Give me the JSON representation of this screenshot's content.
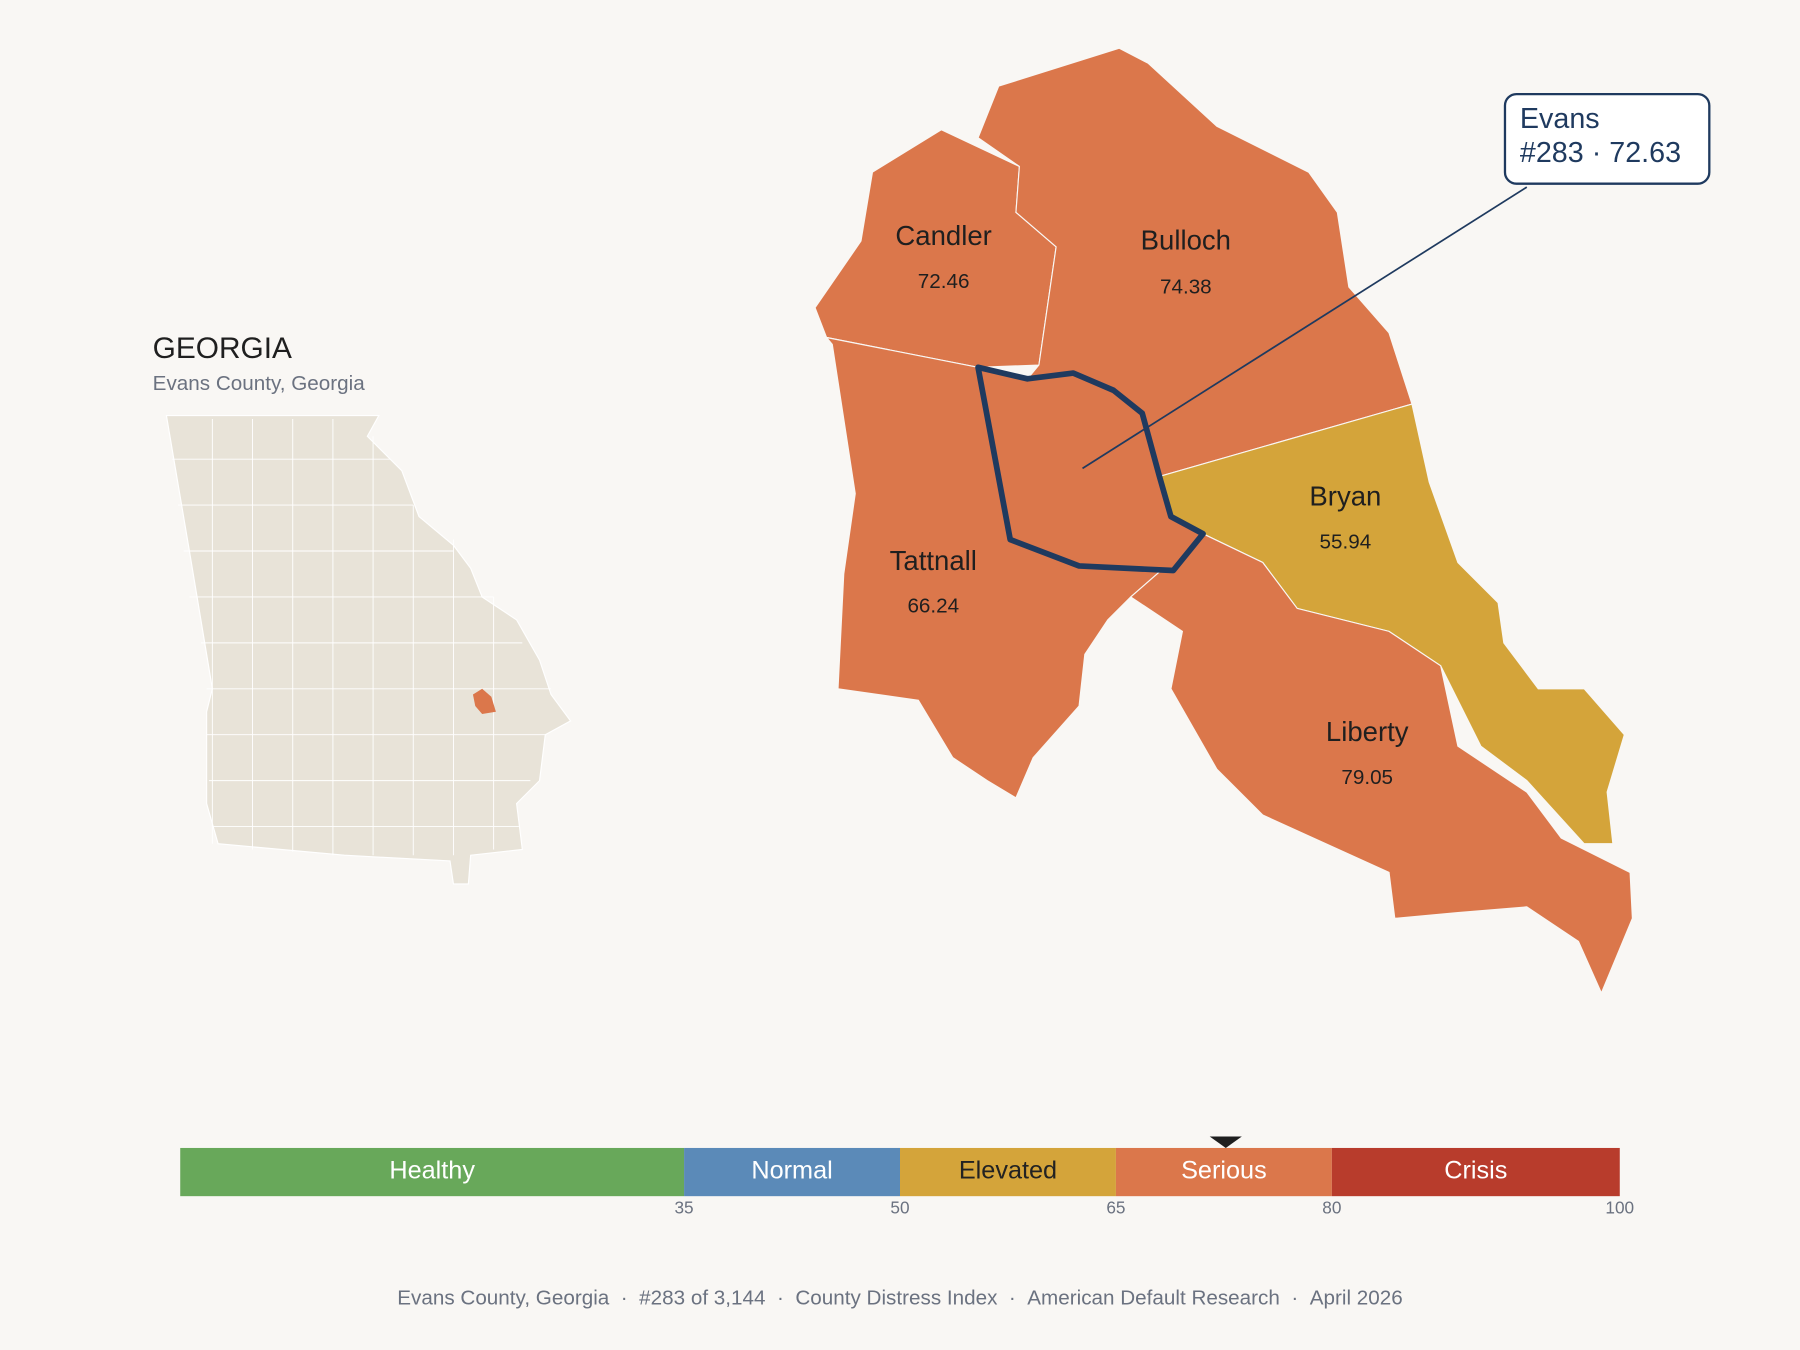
{
  "header": {
    "title": "GEORGIA",
    "subtitle": "Evans County, Georgia"
  },
  "map": {
    "counties": [
      {
        "name": "Candler",
        "value": 72.46
      },
      {
        "name": "Bulloch",
        "value": 74.38
      },
      {
        "name": "Tattnall",
        "value": 66.24
      },
      {
        "name": "Bryan",
        "value": 55.94
      },
      {
        "name": "Liberty",
        "value": 79.05
      }
    ],
    "highlight": {
      "name": "Evans",
      "rank": "#283",
      "separator": "·",
      "value": 72.63
    }
  },
  "scale": {
    "xlim": [
      0,
      100
    ],
    "xticks": [
      35,
      50,
      65,
      80,
      100
    ],
    "bands": [
      {
        "label": "Healthy",
        "color": "#68a85a",
        "text_color": "#ffffff"
      },
      {
        "label": "Normal",
        "color": "#5b8ab8",
        "text_color": "#ffffff"
      },
      {
        "label": "Elevated",
        "color": "#d4a43a",
        "text_color": "#222222"
      },
      {
        "label": "Serious",
        "color": "#db774b",
        "text_color": "#ffffff"
      },
      {
        "label": "Crisis",
        "color": "#b83c2c",
        "text_color": "#ffffff"
      }
    ]
  },
  "footer": {
    "separator": "·",
    "parts": [
      "Evans County, Georgia",
      "#283 of 3,144",
      "County Distress Index",
      "American Default Research",
      "April 2026"
    ]
  }
}
